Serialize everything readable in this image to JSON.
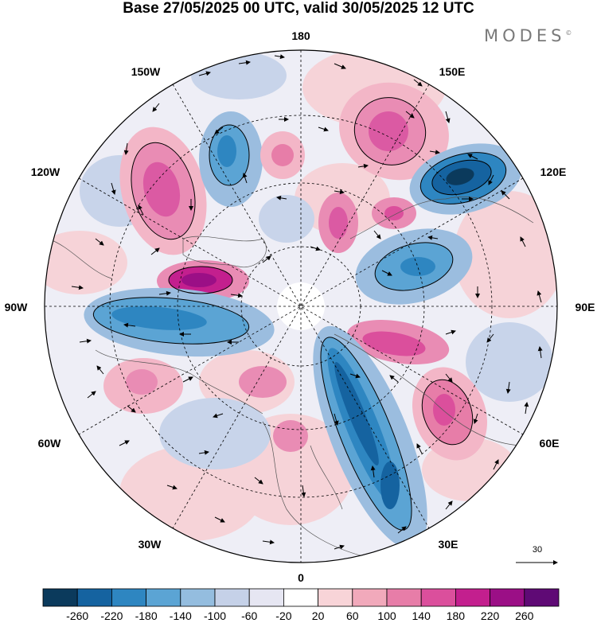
{
  "title": "Base 27/05/2025 00 UTC, valid 30/05/2025 12 UTC",
  "brand": "MODES",
  "brand_mark": "©",
  "longitude_labels": {
    "lon_180": "180",
    "lon_150w": "150W",
    "lon_150e": "150E",
    "lon_120w": "120W",
    "lon_120e": "120E",
    "lon_90w": "90W",
    "lon_90e": "90E",
    "lon_60w": "60W",
    "lon_60e": "60E",
    "lon_30w": "30W",
    "lon_30e": "30E",
    "lon_0": "0"
  },
  "reference_vector": "30",
  "colorbar": {
    "ticks": [
      "-260",
      "-220",
      "-180",
      "-140",
      "-100",
      "-60",
      "-20",
      "20",
      "60",
      "100",
      "140",
      "180",
      "220",
      "260"
    ],
    "colors": [
      "#0b3a5c",
      "#1563a0",
      "#2e86c1",
      "#5ba4d4",
      "#94bddf",
      "#c5d1e8",
      "#e6e6f2",
      "#ffffff",
      "#f8d4d8",
      "#f1a9bb",
      "#e77da8",
      "#db4f9c",
      "#c31f8e",
      "#9b0f86",
      "#5f0a75"
    ]
  },
  "anomaly_features": [
    {
      "sign": "negative",
      "level": 5,
      "region": "east-siberia-120E"
    },
    {
      "sign": "negative",
      "level": 4,
      "region": "europe-30E"
    },
    {
      "sign": "negative",
      "level": 3,
      "region": "north-atlantic-90W"
    },
    {
      "sign": "negative",
      "level": 3,
      "region": "north-pacific-150W"
    },
    {
      "sign": "negative",
      "level": 2,
      "region": "siberia-90E"
    },
    {
      "sign": "positive",
      "level": 4,
      "region": "canada-arctic"
    },
    {
      "sign": "positive",
      "level": 3,
      "region": "alaska-120W"
    },
    {
      "sign": "positive",
      "level": 3,
      "region": "kamchatka-150E"
    },
    {
      "sign": "positive",
      "level": 3,
      "region": "central-asia-60E"
    },
    {
      "sign": "positive",
      "level": 3,
      "region": "ural-75E"
    }
  ]
}
